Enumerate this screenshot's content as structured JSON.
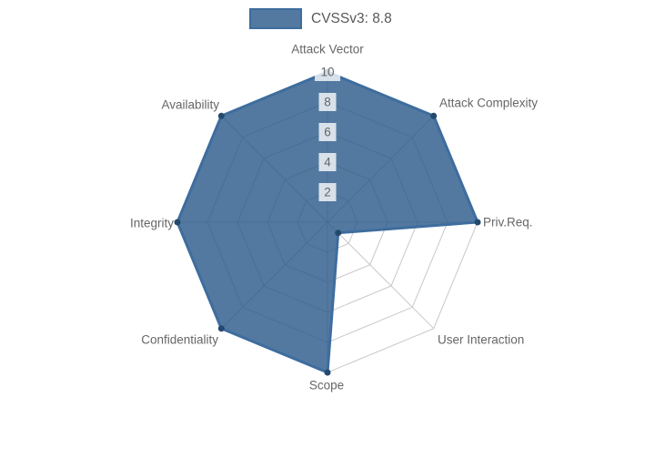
{
  "legend": {
    "label": "CVSSv3: 8.8"
  },
  "chart_data": {
    "type": "radar",
    "title": "",
    "categories": [
      "Attack Vector",
      "Attack Complexity",
      "Priv.Req.",
      "User Interaction",
      "Scope",
      "Confidentiality",
      "Integrity",
      "Availability"
    ],
    "series": [
      {
        "name": "CVSSv3: 8.8",
        "values": [
          10,
          10,
          10,
          1,
          10,
          10,
          10,
          10
        ]
      }
    ],
    "ticks": [
      "2",
      "4",
      "6",
      "8",
      "10"
    ],
    "rlim": [
      0,
      10
    ],
    "grid": true,
    "legend_position": "top",
    "colors": {
      "fill": "rgba(40,88,138,0.8)",
      "border": "#3E6D9E",
      "point": "#24496E",
      "grid": "#C8C8C8",
      "axis_label_text": "#666666",
      "tick_text": "#666666",
      "tick_backdrop": "rgba(255,255,255,0.78)",
      "legend_text": "#595959"
    }
  }
}
